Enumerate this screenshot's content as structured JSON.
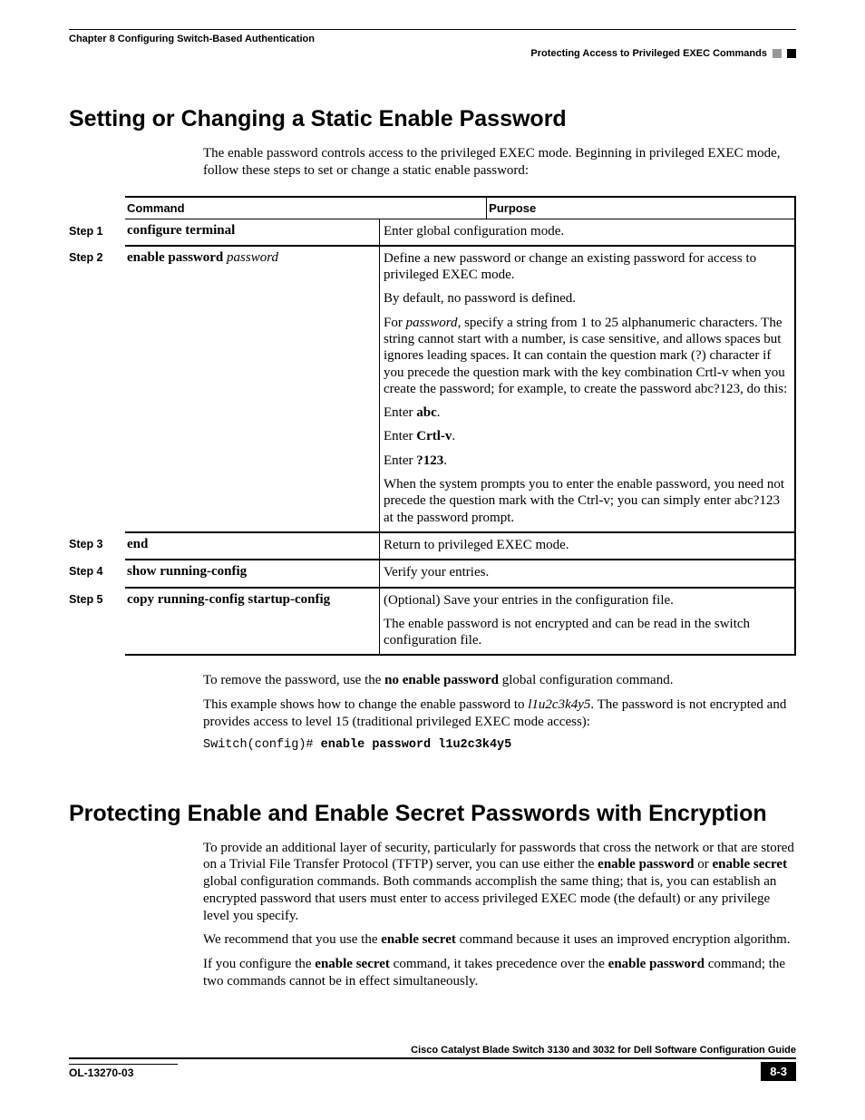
{
  "header": {
    "chapter": "Chapter 8      Configuring Switch-Based Authentication",
    "subtitle": "Protecting Access to Privileged EXEC Commands"
  },
  "section1": {
    "title": "Setting or Changing a Static Enable Password",
    "intro": "The enable password controls access to the privileged EXEC mode. Beginning in privileged EXEC mode, follow these steps to set or change a static enable password:",
    "table": {
      "col1": "Command",
      "col2": "Purpose",
      "rows": [
        {
          "step": "Step 1",
          "command_html": "configure terminal",
          "purpose": [
            "Enter global configuration mode."
          ]
        },
        {
          "step": "Step 2",
          "command_html": "enable password <span class=\"arg\">password</span>",
          "purpose": [
            "Define a new password or change an existing password for access to privileged EXEC mode.",
            "By default, no password is defined.",
            "For <i>password</i>, specify a string from 1 to 25 alphanumeric characters. The string cannot start with a number, is case sensitive, and allows spaces but ignores leading spaces. It can contain the question mark (?) character if you precede the question mark with the key combination Crtl-v when you create the password; for example, to create the password abc?123, do this:",
            "Enter <b>abc</b>.",
            "Enter <b>Crtl-v</b>.",
            "Enter <b>?123</b>.",
            "When the system prompts you to enter the enable password, you need not precede the question mark with the Ctrl-v; you can simply enter abc?123 at the password prompt."
          ]
        },
        {
          "step": "Step 3",
          "command_html": "end",
          "purpose": [
            "Return to privileged EXEC mode."
          ]
        },
        {
          "step": "Step 4",
          "command_html": "show running-config",
          "purpose": [
            "Verify your entries."
          ]
        },
        {
          "step": "Step 5",
          "command_html": "copy running-config startup-config",
          "purpose": [
            "(Optional) Save your entries in the configuration file.",
            "The enable password is not encrypted and can be read in the switch configuration file."
          ]
        }
      ]
    },
    "after1": "To remove the password, use the <b>no enable password</b> global configuration command.",
    "after2": "This example shows how to change the enable password to <i>l1u2c3k4y5</i>. The password is not encrypted and provides access to level 15 (traditional privileged EXEC mode access):",
    "code_prompt": "Switch(config)# ",
    "code_cmd": "enable password l1u2c3k4y5"
  },
  "section2": {
    "title": "Protecting Enable and Enable Secret Passwords with Encryption",
    "p1": "To provide an additional layer of security, particularly for passwords that cross the network or that are stored on a Trivial File Transfer Protocol (TFTP) server, you can use either the <b>enable password</b> or <b>enable secret</b> global configuration commands. Both commands accomplish the same thing; that is, you can establish an encrypted password that users must enter to access privileged EXEC mode (the default) or any privilege level you specify.",
    "p2": "We recommend that you use the <b>enable secret</b> command because it uses an improved encryption algorithm.",
    "p3": "If you configure the <b>enable secret</b> command, it takes precedence over the <b>enable password</b> command; the two commands cannot be in effect simultaneously."
  },
  "footer": {
    "title_line": "Cisco Catalyst Blade Switch 3130 and 3032 for Dell Software Configuration Guide",
    "doc_id": "OL-13270-03",
    "page": "8-3"
  }
}
